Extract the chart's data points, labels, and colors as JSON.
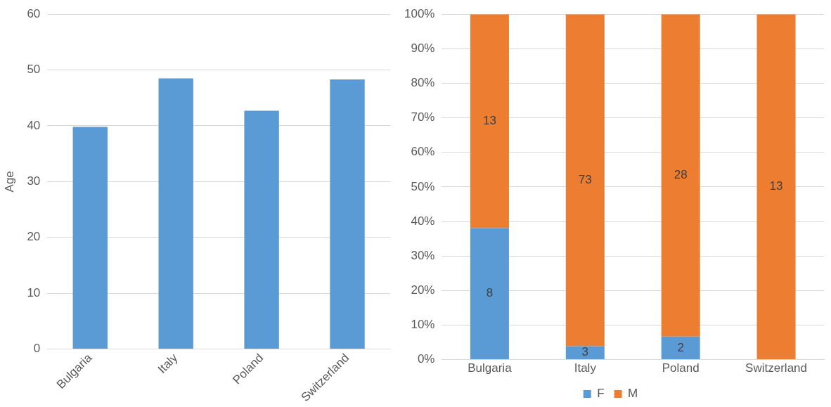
{
  "chart_data": [
    {
      "type": "bar",
      "ylabel": "Age",
      "categories": [
        "Bulgaria",
        "Italy",
        "Poland",
        "Switzerland"
      ],
      "series": [
        {
          "color": "#5b9bd5",
          "values": [
            39.8,
            48.5,
            42.7,
            48.3
          ]
        }
      ],
      "ylim": [
        0,
        60
      ],
      "yticks": [
        0,
        10,
        20,
        30,
        40,
        50,
        60
      ],
      "grid": "y"
    },
    {
      "type": "bar",
      "stacked": true,
      "categories": [
        "Bulgaria",
        "Italy",
        "Poland",
        "Switzerland"
      ],
      "series": [
        {
          "name": "F",
          "color": "#5b9bd5",
          "values": [
            38.1,
            3.9,
            6.7,
            0
          ]
        },
        {
          "name": "M",
          "color": "#ed7d31",
          "values": [
            61.9,
            96.1,
            93.3,
            100
          ]
        }
      ],
      "annotations": [
        "8",
        "3",
        "2",
        "13",
        "73",
        "28",
        "13"
      ],
      "ylim": [
        0,
        100
      ],
      "yticks": [
        {
          "value": 0,
          "label": "0%"
        },
        {
          "value": 10,
          "label": "10%"
        },
        {
          "value": 20,
          "label": "20%"
        },
        {
          "value": 30,
          "label": "30%"
        },
        {
          "value": 40,
          "label": "40%"
        },
        {
          "value": 50,
          "label": "50%"
        },
        {
          "value": 60,
          "label": "60%"
        },
        {
          "value": 70,
          "label": "70%"
        },
        {
          "value": 80,
          "label": "80%"
        },
        {
          "value": 90,
          "label": "90%"
        },
        {
          "value": 100,
          "label": "100%"
        }
      ],
      "grid": "y",
      "legend": "bottom"
    }
  ]
}
